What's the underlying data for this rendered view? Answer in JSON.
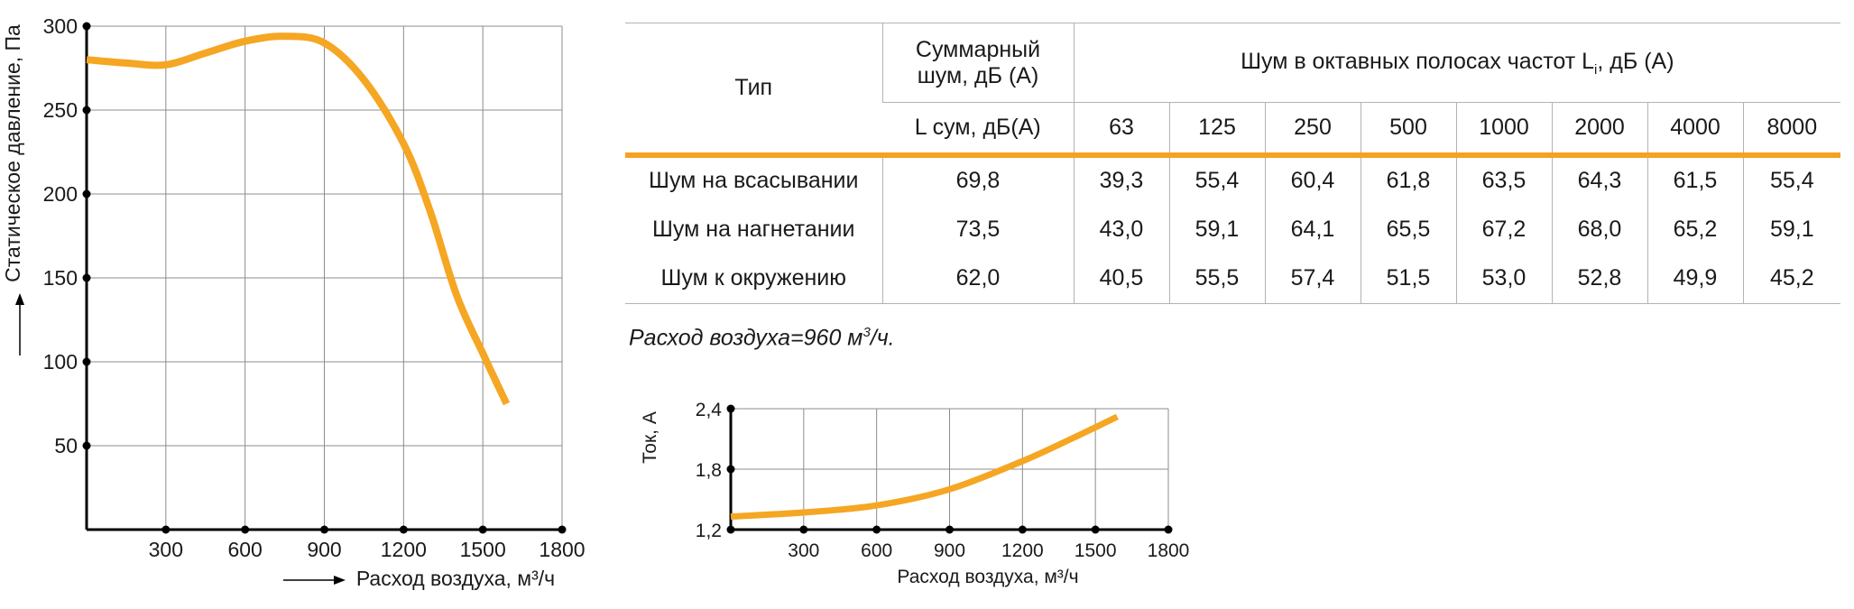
{
  "chart_data": [
    {
      "type": "line",
      "xlabel": "Расход воздуха, м³/ч",
      "ylabel": "Статическое давление, Па",
      "xlim": [
        0,
        1800
      ],
      "ylim": [
        0,
        300
      ],
      "x_ticks": [
        "300",
        "600",
        "900",
        "1200",
        "1500",
        "1800"
      ],
      "y_ticks": [
        "300",
        "250",
        "200",
        "150",
        "100",
        "50"
      ],
      "grid": true,
      "color": "#f5a623",
      "series": [
        {
          "x": [
            0,
            150,
            300,
            450,
            600,
            750,
            900,
            1050,
            1200,
            1300,
            1400,
            1500,
            1590
          ],
          "y": [
            280,
            278,
            277,
            284,
            291,
            294,
            290,
            268,
            230,
            190,
            140,
            105,
            75
          ]
        }
      ]
    },
    {
      "type": "line",
      "xlabel": "Расход воздуха, м³/ч",
      "ylabel": "Ток, А",
      "xlim": [
        0,
        1800
      ],
      "ylim": [
        1.2,
        2.4
      ],
      "x_ticks": [
        "300",
        "600",
        "900",
        "1200",
        "1500",
        "1800"
      ],
      "y_ticks": [
        "2,4",
        "1,8",
        "1,2"
      ],
      "grid": true,
      "color": "#f5a623",
      "series": [
        {
          "x": [
            0,
            300,
            600,
            900,
            1200,
            1400,
            1590
          ],
          "y": [
            1.33,
            1.37,
            1.44,
            1.6,
            1.88,
            2.1,
            2.32
          ]
        }
      ]
    }
  ],
  "table": {
    "type_header": "Тип",
    "total_header_line1": "Суммарный",
    "total_header_line2": "шум, дБ (А)",
    "octave_header_pre": "Шум в октавных полосах частот L",
    "octave_header_sub": "i",
    "octave_header_post": ", дБ (А)",
    "lsum_header": "L сум, дБ(А)",
    "frequencies": [
      "63",
      "125",
      "250",
      "500",
      "1000",
      "2000",
      "4000",
      "8000"
    ],
    "rows": [
      {
        "label": "Шум на всасывании",
        "total": "69,8",
        "values": [
          "39,3",
          "55,4",
          "60,4",
          "61,8",
          "63,5",
          "64,3",
          "61,5",
          "55,4"
        ]
      },
      {
        "label": "Шум на нагнетании",
        "total": "73,5",
        "values": [
          "43,0",
          "59,1",
          "64,1",
          "65,5",
          "67,2",
          "68,0",
          "65,2",
          "59,1"
        ]
      },
      {
        "label": "Шум к окружению",
        "total": "62,0",
        "values": [
          "40,5",
          "55,5",
          "57,4",
          "51,5",
          "53,0",
          "52,8",
          "49,9",
          "45,2"
        ]
      }
    ]
  },
  "note": {
    "text": "Расход воздуха=960 м",
    "sup": "3",
    "suffix": "/ч."
  }
}
